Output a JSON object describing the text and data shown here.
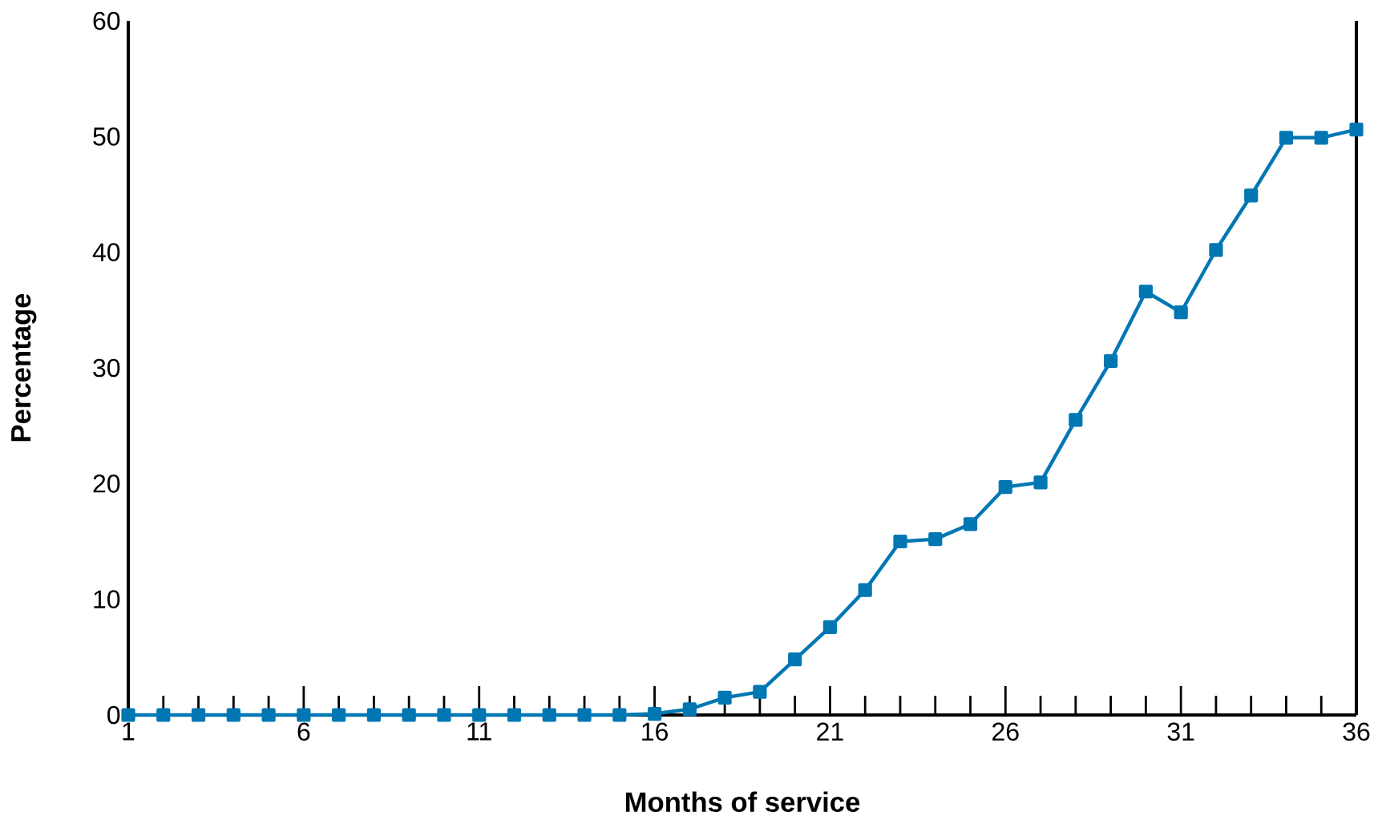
{
  "chart_data": {
    "type": "line",
    "xlabel": "Months of service",
    "ylabel": "Percentage",
    "x": [
      1,
      2,
      3,
      4,
      5,
      6,
      7,
      8,
      9,
      10,
      11,
      12,
      13,
      14,
      15,
      16,
      17,
      18,
      19,
      20,
      21,
      22,
      23,
      24,
      25,
      26,
      27,
      28,
      29,
      30,
      31,
      32,
      33,
      34,
      35,
      36
    ],
    "series": [
      {
        "color": "#0077b3",
        "values": [
          0,
          0,
          0,
          0,
          0,
          0,
          0,
          0,
          0,
          0,
          0,
          0,
          0,
          0,
          0,
          0.1,
          0.5,
          1.5,
          2.0,
          4.8,
          7.6,
          10.8,
          15.0,
          15.2,
          16.5,
          19.7,
          20.1,
          25.5,
          30.6,
          36.6,
          34.8,
          40.2,
          44.9,
          49.9,
          49.9,
          50.6
        ]
      }
    ],
    "xlim": [
      1,
      36
    ],
    "ylim": [
      0,
      60
    ],
    "xticks": [
      1,
      {
        "value": 2,
        "label": null
      },
      {
        "value": 3,
        "label": null
      },
      {
        "value": 4,
        "label": null
      },
      {
        "value": 5,
        "label": null
      },
      6,
      {
        "value": 7,
        "label": null
      },
      {
        "value": 8,
        "label": null
      },
      {
        "value": 9,
        "label": null
      },
      {
        "value": 10,
        "label": null
      },
      11,
      {
        "value": 12,
        "label": null
      },
      {
        "value": 13,
        "label": null
      },
      {
        "value": 14,
        "label": null
      },
      {
        "value": 15,
        "label": null
      },
      16,
      {
        "value": 17,
        "label": null
      },
      {
        "value": 18,
        "label": null
      },
      {
        "value": 19,
        "label": null
      },
      {
        "value": 20,
        "label": null
      },
      21,
      {
        "value": 22,
        "label": null
      },
      {
        "value": 23,
        "label": null
      },
      {
        "value": 24,
        "label": null
      },
      {
        "value": 25,
        "label": null
      },
      26,
      {
        "value": 27,
        "label": null
      },
      {
        "value": 28,
        "label": null
      },
      {
        "value": 29,
        "label": null
      },
      {
        "value": 30,
        "label": null
      },
      31,
      {
        "value": 32,
        "label": null
      },
      {
        "value": 33,
        "label": null
      },
      {
        "value": 34,
        "label": null
      },
      {
        "value": 35,
        "label": null
      },
      36
    ],
    "yticks": [
      0,
      10,
      20,
      30,
      40,
      50,
      60
    ],
    "grid": false,
    "marker": "square",
    "line_style": "solid"
  }
}
